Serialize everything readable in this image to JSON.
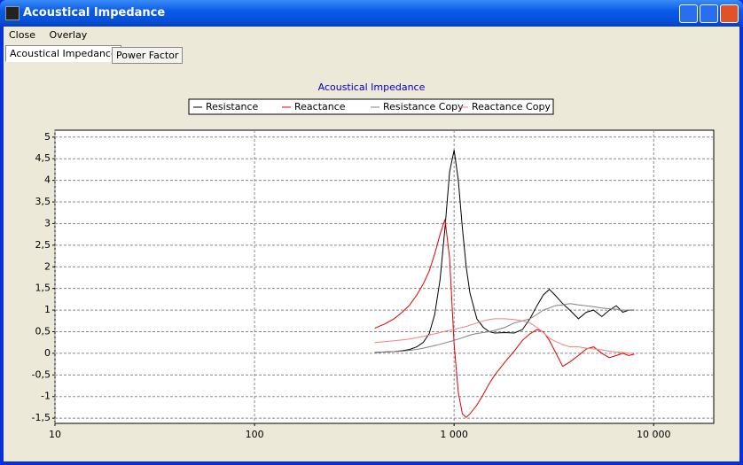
{
  "window": {
    "title": "Acoustical Impedance",
    "menu": [
      "Close",
      "Overlay"
    ],
    "tabs": [
      "Acoustical Impedance",
      "Power Factor"
    ]
  },
  "chart_data": {
    "type": "line",
    "title": "Acoustical Impedance",
    "log_x": true,
    "grid": true,
    "xlim": [
      10,
      20000
    ],
    "ylim": [
      -1.62,
      5.16
    ],
    "xticks": [
      10,
      100,
      {
        "value": 1000,
        "label": "1 000"
      },
      {
        "value": 10000,
        "label": "10 000"
      }
    ],
    "yticks": [
      {
        "value": -1.5,
        "label": "-1,5"
      },
      -1,
      {
        "value": -0.5,
        "label": "-0,5"
      },
      0,
      {
        "value": 0.5,
        "label": "0,5"
      },
      1,
      {
        "value": 1.5,
        "label": "1,5"
      },
      2,
      {
        "value": 2.5,
        "label": "2,5"
      },
      3,
      {
        "value": 3.5,
        "label": "3,5"
      },
      4,
      {
        "value": 4.5,
        "label": "4,5"
      },
      5
    ],
    "x": [
      400,
      450,
      500,
      550,
      600,
      650,
      700,
      750,
      800,
      850,
      900,
      950,
      1000,
      1050,
      1100,
      1150,
      1200,
      1300,
      1400,
      1500,
      1600,
      1800,
      2000,
      2200,
      2400,
      2600,
      2800,
      3000,
      3200,
      3500,
      3800,
      4200,
      4600,
      5000,
      5500,
      6000,
      6500,
      7000,
      7500,
      8000
    ],
    "series": [
      {
        "name": "Resistance",
        "color": "#000000",
        "values": [
          0.02,
          0.03,
          0.04,
          0.06,
          0.09,
          0.15,
          0.25,
          0.45,
          0.9,
          1.7,
          2.9,
          4.2,
          4.7,
          4.0,
          2.9,
          2.0,
          1.4,
          0.8,
          0.6,
          0.5,
          0.47,
          0.48,
          0.47,
          0.55,
          0.8,
          1.1,
          1.35,
          1.48,
          1.35,
          1.15,
          1.0,
          0.8,
          0.95,
          1.0,
          0.85,
          1.0,
          1.1,
          0.95,
          1.0,
          1.0
        ]
      },
      {
        "name": "Reactance",
        "color": "#e00000",
        "values": [
          0.58,
          0.68,
          0.8,
          0.95,
          1.12,
          1.35,
          1.6,
          1.9,
          2.3,
          2.75,
          3.1,
          2.2,
          0.2,
          -0.9,
          -1.4,
          -1.48,
          -1.4,
          -1.2,
          -0.95,
          -0.7,
          -0.5,
          -0.2,
          0.05,
          0.3,
          0.45,
          0.55,
          0.5,
          0.3,
          0.05,
          -0.3,
          -0.2,
          -0.05,
          0.1,
          0.15,
          0.0,
          -0.1,
          -0.05,
          0.0,
          -0.05,
          -0.02
        ]
      },
      {
        "name": "Resistance Copy",
        "color": "#808080",
        "values": [
          0.02,
          0.03,
          0.04,
          0.05,
          0.07,
          0.09,
          0.12,
          0.15,
          0.18,
          0.21,
          0.24,
          0.27,
          0.3,
          0.33,
          0.36,
          0.39,
          0.42,
          0.46,
          0.48,
          0.5,
          0.53,
          0.6,
          0.7,
          0.75,
          0.8,
          0.9,
          1.0,
          1.05,
          1.1,
          1.12,
          1.15,
          1.12,
          1.1,
          1.08,
          1.05,
          1.03,
          1.02,
          1.0,
          1.0,
          1.0
        ]
      },
      {
        "name": "Reactance Copy",
        "color": "#f08080",
        "values": [
          0.25,
          0.27,
          0.29,
          0.31,
          0.33,
          0.36,
          0.39,
          0.42,
          0.45,
          0.48,
          0.51,
          0.53,
          0.55,
          0.58,
          0.6,
          0.62,
          0.65,
          0.7,
          0.75,
          0.78,
          0.8,
          0.8,
          0.78,
          0.75,
          0.7,
          0.6,
          0.48,
          0.35,
          0.28,
          0.2,
          0.15,
          0.15,
          0.12,
          0.1,
          0.08,
          0.05,
          0.03,
          0.02,
          0.0,
          0.0
        ]
      }
    ]
  }
}
